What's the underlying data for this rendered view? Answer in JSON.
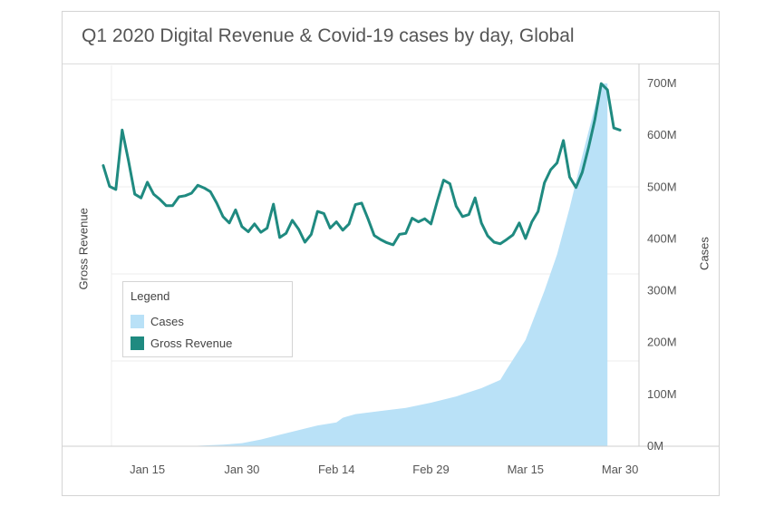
{
  "title": "Q1 2020 Digital Revenue & Covid-19 cases by day, Global",
  "legend": {
    "title": "Legend",
    "items": [
      {
        "label": "Cases",
        "color": "#b9e1f7"
      },
      {
        "label": "Gross Revenue",
        "color": "#1f8a80"
      }
    ]
  },
  "chart_data": {
    "type": "line",
    "title": "Q1 2020 Digital Revenue & Covid-19 cases by day, Global",
    "ylabel": "Gross Revenue",
    "y2label": "Cases",
    "x_tick_labels": [
      "Jan 15",
      "Jan 30",
      "Feb 14",
      "Feb 29",
      "Mar 15",
      "Mar 30"
    ],
    "y2_tick_labels": [
      "0M",
      "100M",
      "200M",
      "300M",
      "400M",
      "500M",
      "600M",
      "700M"
    ],
    "y2lim": [
      0,
      700
    ],
    "x_range": [
      "2020-01-06",
      "2020-04-02"
    ],
    "grid": true,
    "legend_position": "middle-left",
    "series": [
      {
        "name": "Cases",
        "type": "area",
        "axis": "right",
        "color": "#b9e1f7",
        "x": [
          "2020-01-22",
          "2020-01-27",
          "2020-01-30",
          "2020-02-02",
          "2020-02-05",
          "2020-02-08",
          "2020-02-11",
          "2020-02-14",
          "2020-02-15",
          "2020-02-17",
          "2020-02-21",
          "2020-02-25",
          "2020-02-29",
          "2020-03-04",
          "2020-03-08",
          "2020-03-11",
          "2020-03-12",
          "2020-03-15",
          "2020-03-18",
          "2020-03-20",
          "2020-03-22",
          "2020-03-24",
          "2020-03-26",
          "2020-03-27",
          "2020-03-28"
        ],
        "values": [
          0.5,
          3,
          6,
          13,
          22,
          31,
          40,
          46,
          55,
          62,
          68,
          74,
          84,
          96,
          112,
          128,
          148,
          205,
          300,
          370,
          460,
          560,
          655,
          700,
          700
        ]
      },
      {
        "name": "Gross Revenue",
        "type": "line",
        "axis": "left",
        "color": "#1f8a80",
        "x": [
          "2020-01-08",
          "2020-01-09",
          "2020-01-10",
          "2020-01-11",
          "2020-01-12",
          "2020-01-13",
          "2020-01-14",
          "2020-01-15",
          "2020-01-16",
          "2020-01-17",
          "2020-01-18",
          "2020-01-19",
          "2020-01-20",
          "2020-01-21",
          "2020-01-22",
          "2020-01-23",
          "2020-01-24",
          "2020-01-25",
          "2020-01-26",
          "2020-01-27",
          "2020-01-28",
          "2020-01-29",
          "2020-01-30",
          "2020-01-31",
          "2020-02-01",
          "2020-02-02",
          "2020-02-03",
          "2020-02-04",
          "2020-02-05",
          "2020-02-06",
          "2020-02-07",
          "2020-02-08",
          "2020-02-09",
          "2020-02-10",
          "2020-02-11",
          "2020-02-12",
          "2020-02-13",
          "2020-02-14",
          "2020-02-15",
          "2020-02-16",
          "2020-02-17",
          "2020-02-18",
          "2020-02-19",
          "2020-02-20",
          "2020-02-21",
          "2020-02-22",
          "2020-02-23",
          "2020-02-24",
          "2020-02-25",
          "2020-02-26",
          "2020-02-27",
          "2020-02-28",
          "2020-02-29",
          "2020-03-01",
          "2020-03-02",
          "2020-03-03",
          "2020-03-04",
          "2020-03-05",
          "2020-03-06",
          "2020-03-07",
          "2020-03-08",
          "2020-03-09",
          "2020-03-10",
          "2020-03-11",
          "2020-03-12",
          "2020-03-13",
          "2020-03-14",
          "2020-03-15",
          "2020-03-16",
          "2020-03-17",
          "2020-03-18",
          "2020-03-19",
          "2020-03-20",
          "2020-03-21",
          "2020-03-22",
          "2020-03-23",
          "2020-03-24",
          "2020-03-25",
          "2020-03-26",
          "2020-03-27",
          "2020-03-28",
          "2020-03-29",
          "2020-03-30"
        ],
        "values": [
          540,
          500,
          494,
          608,
          550,
          485,
          478,
          508,
          485,
          475,
          463,
          463,
          480,
          482,
          487,
          502,
          497,
          490,
          468,
          442,
          430,
          455,
          423,
          413,
          428,
          412,
          420,
          466,
          402,
          410,
          435,
          418,
          393,
          408,
          452,
          448,
          420,
          432,
          416,
          428,
          465,
          468,
          438,
          406,
          398,
          392,
          388,
          408,
          410,
          439,
          432,
          438,
          428,
          472,
          512,
          505,
          462,
          442,
          446,
          478,
          430,
          405,
          393,
          390,
          398,
          407,
          430,
          400,
          432,
          452,
          507,
          532,
          545,
          588,
          518,
          498,
          527,
          575,
          628,
          697,
          685,
          612,
          608
        ]
      }
    ]
  }
}
